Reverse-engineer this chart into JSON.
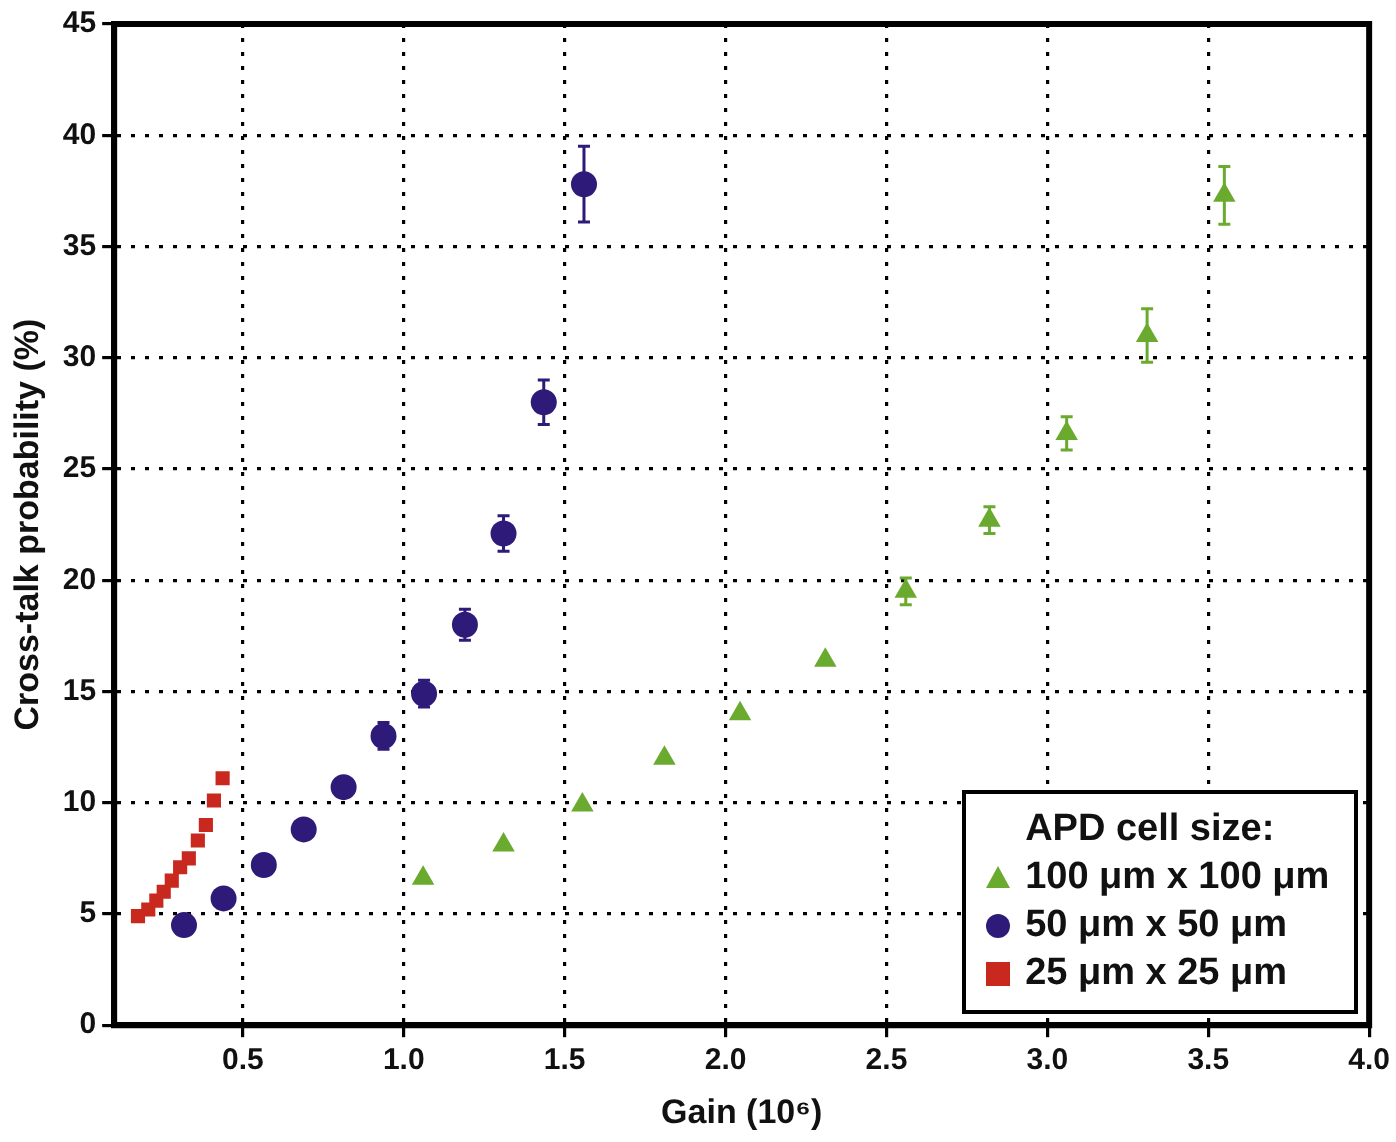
{
  "chart_data": {
    "type": "scatter",
    "xlabel": "Gain (10⁶)",
    "ylabel": "Cross-talk probability (%)",
    "legend_title": "APD cell size:",
    "xlim": [
      0.1,
      4.0
    ],
    "ylim": [
      0,
      45
    ],
    "xticks": [
      {
        "value": 0.5,
        "label": "0.5"
      },
      {
        "value": 1,
        "label": "1.0"
      },
      {
        "value": 1.5,
        "label": "1.5"
      },
      {
        "value": 2,
        "label": "2.0"
      },
      {
        "value": 2.5,
        "label": "2.5"
      },
      {
        "value": 3,
        "label": "3.0"
      },
      {
        "value": 3.5,
        "label": "3.5"
      },
      {
        "value": 4,
        "label": "4.0"
      }
    ],
    "yticks": [
      0,
      5,
      10,
      15,
      20,
      25,
      30,
      35,
      40,
      45
    ],
    "grid": true,
    "legend": "bottom right",
    "series": [
      {
        "name": "100 μm x 100 μm",
        "color": "#6aaa2e",
        "marker": "triangle",
        "x": [
          1.06,
          1.31,
          1.555,
          1.81,
          2.045,
          2.31,
          2.56,
          2.82,
          3.06,
          3.31,
          3.55
        ],
        "values": [
          6.6,
          8.1,
          9.9,
          12.0,
          14.0,
          16.4,
          19.5,
          22.7,
          26.6,
          31.0,
          37.3
        ],
        "errors": [
          null,
          null,
          null,
          null,
          null,
          null,
          0.6,
          0.6,
          0.75,
          1.2,
          1.3
        ]
      },
      {
        "name": "50 μm x 50 μm",
        "color": "#2e1a78",
        "marker": "circle",
        "x": [
          0.317,
          0.44,
          0.565,
          0.689,
          0.813,
          0.937,
          1.063,
          1.19,
          1.31,
          1.435,
          1.56
        ],
        "values": [
          4.5,
          5.7,
          7.2,
          8.8,
          10.7,
          13.0,
          14.9,
          18.0,
          22.1,
          28.0,
          37.8
        ],
        "errors": [
          null,
          null,
          null,
          null,
          null,
          0.6,
          0.6,
          0.7,
          0.8,
          1.0,
          1.7
        ]
      },
      {
        "name": "25 μm x 25 μm",
        "color": "#c8281e",
        "marker": "square",
        "x": [
          0.174,
          0.206,
          0.231,
          0.254,
          0.279,
          0.305,
          0.332,
          0.36,
          0.385,
          0.41,
          0.437
        ],
        "values": [
          4.9,
          5.2,
          5.6,
          6.0,
          6.5,
          7.1,
          7.5,
          8.3,
          9.0,
          10.1,
          11.1
        ]
      }
    ]
  }
}
